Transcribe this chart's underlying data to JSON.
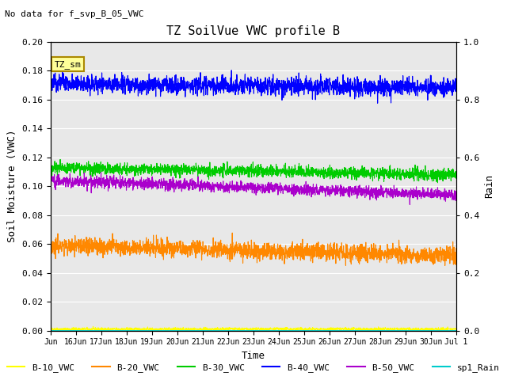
{
  "title": "TZ SoilVue VWC profile B",
  "no_data_text": "No data for f_svp_B_05_VWC",
  "xlabel": "Time",
  "ylabel_left": "Soil Moisture (VWC)",
  "ylabel_right": "Rain",
  "ylim_left": [
    0.0,
    0.2
  ],
  "ylim_right": [
    0.0,
    1.0
  ],
  "yticks_left": [
    0.0,
    0.02,
    0.04,
    0.06,
    0.08,
    0.1,
    0.12,
    0.14,
    0.16,
    0.18,
    0.2
  ],
  "yticks_right": [
    0.0,
    0.2,
    0.4,
    0.6,
    0.8,
    1.0
  ],
  "background_color": "#e8e8e8",
  "fig_background": "#ffffff",
  "tz_sm_box_color": "#ffff99",
  "tz_sm_border_color": "#aa8800",
  "series": {
    "B10": {
      "label": "B-10_VWC",
      "color": "#ffff00"
    },
    "B20": {
      "label": "B-20_VWC",
      "color": "#ff8800"
    },
    "B30": {
      "label": "B-30_VWC",
      "color": "#00cc00"
    },
    "B40": {
      "label": "B-40_VWC",
      "color": "#0000ff"
    },
    "B50": {
      "label": "B-50_VWC",
      "color": "#aa00cc"
    },
    "sp1Rain": {
      "label": "sp1_Rain",
      "color": "#00cccc"
    }
  },
  "n_points": 2000,
  "xtick_positions": [
    15,
    16,
    17,
    18,
    19,
    20,
    21,
    22,
    23,
    24,
    25,
    26,
    27,
    28,
    29,
    30,
    31
  ],
  "xtick_labels": [
    "Jun",
    "16Jun",
    "17Jun",
    "18Jun",
    "19Jun",
    "20Jun",
    "21Jun",
    "22Jun",
    "23Jun",
    "24Jun",
    "25Jun",
    "26Jun",
    "27Jun",
    "28Jun",
    "29Jun",
    "30Jun",
    "Jul 1"
  ],
  "xlim": [
    15,
    31
  ],
  "font_family": "monospace"
}
